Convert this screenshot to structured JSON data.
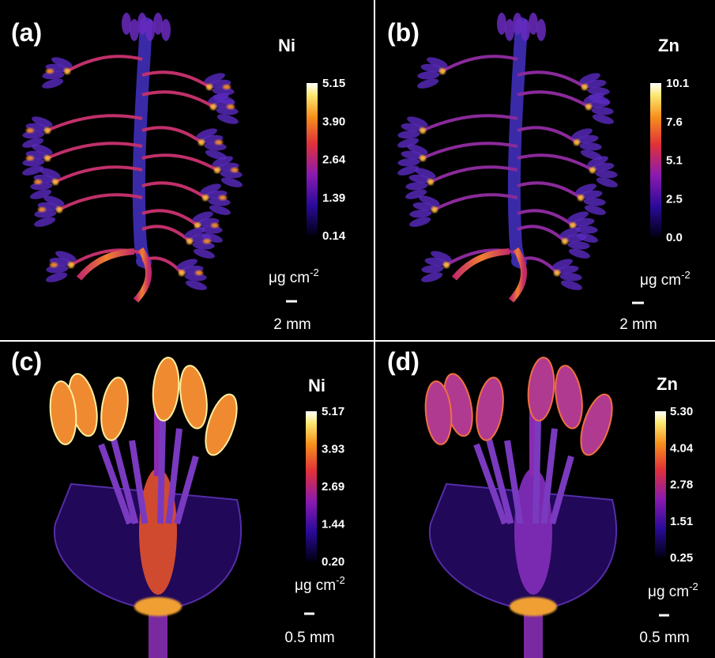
{
  "panels": [
    {
      "label": "(a)",
      "element": "Ni",
      "colorbar_ticks": [
        "5.15",
        "3.90",
        "2.64",
        "1.39",
        "0.14"
      ],
      "unit": {
        "base": "μg cm",
        "sup": "-2"
      },
      "scale_bar": "2 mm"
    },
    {
      "label": "(b)",
      "element": "Zn",
      "colorbar_ticks": [
        "10.1",
        "7.6",
        "5.1",
        "2.5",
        "0.0"
      ],
      "unit": {
        "base": "μg cm",
        "sup": "-2"
      },
      "scale_bar": "2 mm"
    },
    {
      "label": "(c)",
      "element": "Ni",
      "colorbar_ticks": [
        "5.17",
        "3.93",
        "2.69",
        "1.44",
        "0.20"
      ],
      "unit": {
        "base": "μg cm",
        "sup": "-2"
      },
      "scale_bar": "0.5 mm"
    },
    {
      "label": "(d)",
      "element": "Zn",
      "colorbar_ticks": [
        "5.30",
        "4.04",
        "2.78",
        "1.51",
        "0.25"
      ],
      "unit": {
        "base": "μg cm",
        "sup": "-2"
      },
      "scale_bar": "0.5 mm"
    }
  ]
}
